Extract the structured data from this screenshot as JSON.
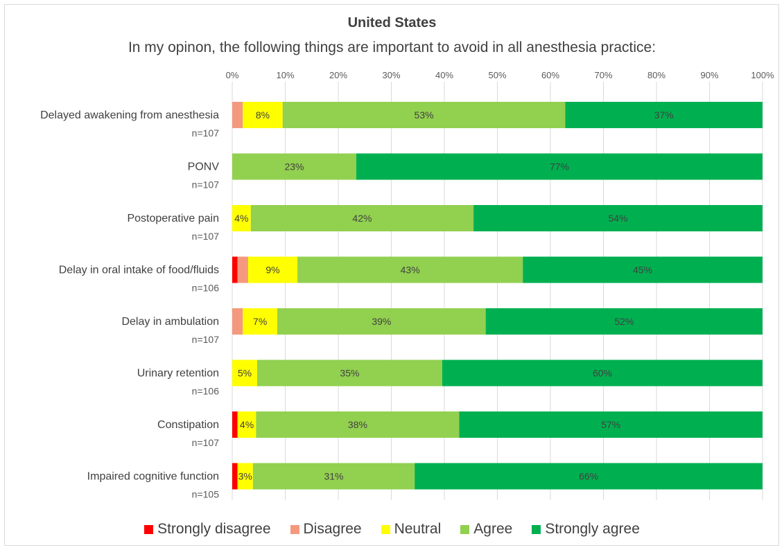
{
  "title": "United States",
  "subtitle": "In my opinon, the following things are important to avoid in all anesthesia practice:",
  "chart_data": {
    "type": "bar",
    "orientation": "horizontal",
    "stacked": true,
    "x_tick_labels": [
      "0%",
      "10%",
      "20%",
      "30%",
      "40%",
      "50%",
      "60%",
      "70%",
      "80%",
      "90%",
      "100%"
    ],
    "xlim": [
      0,
      100
    ],
    "categories": [
      {
        "label": "Delayed awakening from anesthesia",
        "n": "n=107"
      },
      {
        "label": "PONV",
        "n": "n=107"
      },
      {
        "label": "Postoperative pain",
        "n": "n=107"
      },
      {
        "label": "Delay in oral intake of food/fluids",
        "n": "n=106"
      },
      {
        "label": "Delay in ambulation",
        "n": "n=107"
      },
      {
        "label": "Urinary retention",
        "n": "n=106"
      },
      {
        "label": "Constipation",
        "n": "n=107"
      },
      {
        "label": "Impaired cognitive function",
        "n": "n=105"
      }
    ],
    "series": [
      {
        "name": "Strongly disagree",
        "color": "#ff0000",
        "values": [
          0,
          0,
          0,
          1,
          0,
          0,
          1,
          1
        ],
        "labels": [
          "",
          "",
          "",
          "",
          "",
          "",
          "",
          ""
        ]
      },
      {
        "name": "Disagree",
        "color": "#f4997d",
        "values": [
          2,
          0,
          0,
          2,
          2,
          0,
          0,
          0
        ],
        "labels": [
          "",
          "",
          "",
          "",
          "",
          "",
          "",
          ""
        ]
      },
      {
        "name": "Neutral",
        "color": "#ffff00",
        "values": [
          7.5,
          0,
          3.5,
          9.3,
          6.5,
          4.7,
          3.5,
          2.9
        ],
        "labels": [
          "8%",
          "",
          "4%",
          "9%",
          "7%",
          "5%",
          "4%",
          "3%"
        ]
      },
      {
        "name": "Agree",
        "color": "#92d050",
        "values": [
          53.3,
          23.4,
          42,
          42.5,
          39.3,
          34.9,
          38.3,
          30.5
        ],
        "labels": [
          "53%",
          "23%",
          "42%",
          "43%",
          "39%",
          "35%",
          "38%",
          "31%"
        ]
      },
      {
        "name": "Strongly agree",
        "color": "#00b050",
        "values": [
          37.2,
          76.6,
          54.5,
          45.2,
          52.2,
          60.4,
          57.2,
          65.6
        ],
        "labels": [
          "37%",
          "77%",
          "54%",
          "45%",
          "52%",
          "60%",
          "57%",
          "66%"
        ]
      }
    ],
    "grid": true,
    "legend_position": "bottom"
  }
}
